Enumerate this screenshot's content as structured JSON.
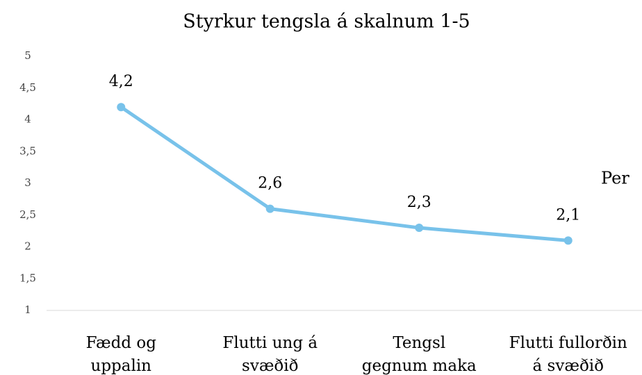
{
  "chart_data": {
    "type": "line",
    "title": "Styrkur tengsla á skalnum 1-5",
    "categories": [
      [
        "Fædd og",
        "uppalin"
      ],
      [
        "Flutti ung á",
        "svæðið"
      ],
      [
        "Tengsl",
        "gegnum maka"
      ],
      [
        "Flutti fullorðin",
        "á svæðið"
      ]
    ],
    "series": [
      {
        "color": "#78c2ea",
        "values": [
          4.2,
          2.6,
          2.3,
          2.1
        ],
        "value_labels": [
          "4,2",
          "2,6",
          "2,3",
          "2,1"
        ]
      }
    ],
    "ylim": [
      1,
      5
    ],
    "yticks": [
      1,
      {
        "value": 1.5,
        "label": "1,5"
      },
      2,
      {
        "value": 2.5,
        "label": "2,5"
      },
      3,
      {
        "value": 3.5,
        "label": "3,5"
      },
      4,
      {
        "value": 4.5,
        "label": "4,5"
      },
      5
    ],
    "annotation": "Per"
  }
}
